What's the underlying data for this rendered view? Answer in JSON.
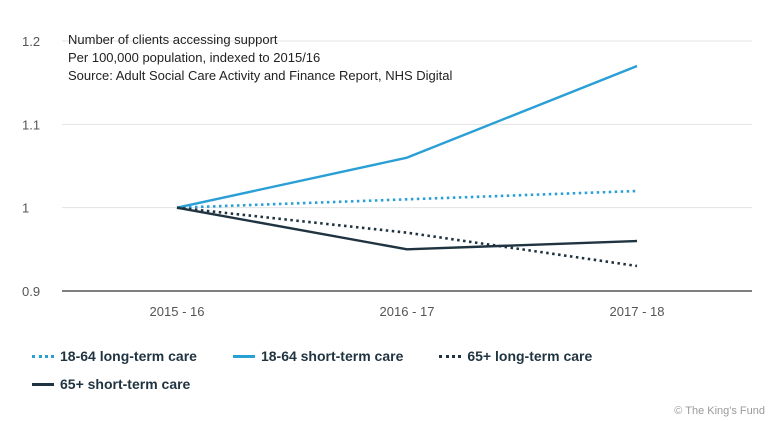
{
  "chart_data": {
    "type": "line",
    "notes": [
      "Number of clients accessing support",
      "Per 100,000 population, indexed to 2015/16",
      "Source: Adult Social Care Activity and Finance Report, NHS Digital"
    ],
    "categories": [
      "2015 - 16",
      "2016 - 17",
      "2017 - 18"
    ],
    "ylim": [
      0.9,
      1.2
    ],
    "yticks": [
      {
        "value": 0.9,
        "label": "0.9"
      },
      {
        "value": 1.0,
        "label": "1"
      },
      {
        "value": 1.1,
        "label": "1.1"
      },
      {
        "value": 1.2,
        "label": "1.2"
      }
    ],
    "grid": true,
    "legend_position": "bottom",
    "series": [
      {
        "name": "18-64 long-term care",
        "values": [
          1.0,
          1.01,
          1.02
        ],
        "color": "#2a9fd6",
        "style": "dotted"
      },
      {
        "name": "18-64 short-term care",
        "values": [
          1.0,
          1.06,
          1.17
        ],
        "color": "#2a9fd6",
        "style": "solid"
      },
      {
        "name": "65+ long-term care",
        "values": [
          1.0,
          0.97,
          0.93
        ],
        "color": "#1f3340",
        "style": "dotted"
      },
      {
        "name": "65+ short-term care",
        "values": [
          1.0,
          0.95,
          0.96
        ],
        "color": "#1f3340",
        "style": "solid"
      }
    ]
  },
  "credit": "© The King's Fund"
}
